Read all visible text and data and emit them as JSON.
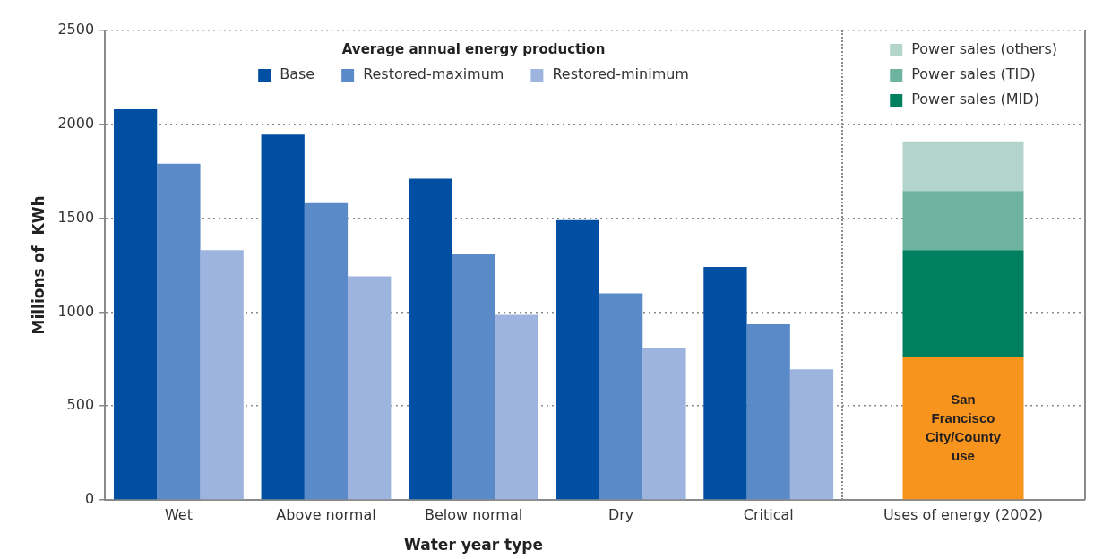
{
  "chart_data": [
    {
      "type": "bar",
      "xlabel": "Water year type",
      "ylabel": "Millions of  KWh",
      "legend_title": "Average annual energy production",
      "legend": "top",
      "grid": "y",
      "categories": [
        "Wet",
        "Above normal",
        "Below normal",
        "Dry",
        "Critical"
      ],
      "series": [
        {
          "name": "Base",
          "color": "#004fa3",
          "values": [
            2080,
            1945,
            1710,
            1490,
            1240
          ]
        },
        {
          "name": "Restored-maximum",
          "color": "#5b8ac8",
          "values": [
            1790,
            1580,
            1310,
            1100,
            935
          ]
        },
        {
          "name": "Restored-minimum",
          "color": "#9db4de",
          "values": [
            1330,
            1190,
            985,
            810,
            695
          ]
        }
      ],
      "ylim": [
        0,
        2500
      ],
      "yticks": [
        0,
        500,
        1000,
        1500,
        2000,
        2500
      ]
    },
    {
      "type": "bar",
      "stacked": true,
      "legend": "top right",
      "grid": "y",
      "tick_labels": "x",
      "categories": [
        "Uses of energy (2002)"
      ],
      "series": [
        {
          "color": "#f7941d",
          "values": [
            760
          ]
        },
        {
          "name": "Power sales (MID)",
          "color": "#00805f",
          "values": [
            570
          ]
        },
        {
          "name": "Power sales (TID)",
          "color": "#6db3a0",
          "values": [
            315
          ]
        },
        {
          "name": "Power sales (others)",
          "color": "#b2d4ca",
          "values": [
            265
          ]
        }
      ],
      "annotations": [
        "San Francisco City/County use"
      ],
      "ylim": [
        0,
        2500
      ],
      "yticks": [
        0,
        500,
        1000,
        1500,
        2000,
        2500
      ]
    }
  ]
}
